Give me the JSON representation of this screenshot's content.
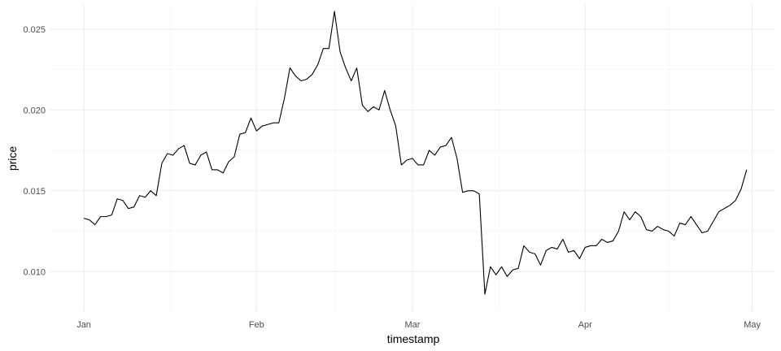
{
  "chart_data": {
    "type": "line",
    "xlabel": "timestamp",
    "ylabel": "price",
    "x_tick_labels": [
      "Jan",
      "Feb",
      "Mar",
      "Apr",
      "May"
    ],
    "x_ticks": [
      "2022-01-01",
      "2022-02-01",
      "2022-03-01",
      "2022-04-01",
      "2022-05-01"
    ],
    "y_tick_labels": [
      "0.010",
      "0.015",
      "0.020",
      "0.025"
    ],
    "y_ticks": [
      0.01,
      0.015,
      0.02,
      0.025
    ],
    "xlim": [
      "2021-12-26",
      "2022-05-05"
    ],
    "ylim": [
      0.0075,
      0.0265
    ],
    "grid": true,
    "legend": "none",
    "series": [
      {
        "color": "#000000",
        "x": [
          "2022-01-01",
          "2022-01-02",
          "2022-01-03",
          "2022-01-04",
          "2022-01-05",
          "2022-01-06",
          "2022-01-07",
          "2022-01-08",
          "2022-01-09",
          "2022-01-10",
          "2022-01-11",
          "2022-01-12",
          "2022-01-13",
          "2022-01-14",
          "2022-01-15",
          "2022-01-16",
          "2022-01-17",
          "2022-01-18",
          "2022-01-19",
          "2022-01-20",
          "2022-01-21",
          "2022-01-22",
          "2022-01-23",
          "2022-01-24",
          "2022-01-25",
          "2022-01-26",
          "2022-01-27",
          "2022-01-28",
          "2022-01-29",
          "2022-01-30",
          "2022-01-31",
          "2022-02-01",
          "2022-02-02",
          "2022-02-03",
          "2022-02-04",
          "2022-02-05",
          "2022-02-06",
          "2022-02-07",
          "2022-02-08",
          "2022-02-09",
          "2022-02-10",
          "2022-02-11",
          "2022-02-12",
          "2022-02-13",
          "2022-02-14",
          "2022-02-15",
          "2022-02-16",
          "2022-02-17",
          "2022-02-18",
          "2022-02-19",
          "2022-02-20",
          "2022-02-21",
          "2022-02-22",
          "2022-02-23",
          "2022-02-24",
          "2022-02-25",
          "2022-02-26",
          "2022-02-27",
          "2022-02-28",
          "2022-03-01",
          "2022-03-02",
          "2022-03-03",
          "2022-03-04",
          "2022-03-05",
          "2022-03-06",
          "2022-03-07",
          "2022-03-08",
          "2022-03-09",
          "2022-03-10",
          "2022-03-11",
          "2022-03-12",
          "2022-03-13",
          "2022-03-14",
          "2022-03-15",
          "2022-03-16",
          "2022-03-17",
          "2022-03-18",
          "2022-03-19",
          "2022-03-20",
          "2022-03-21",
          "2022-03-22",
          "2022-03-23",
          "2022-03-24",
          "2022-03-25",
          "2022-03-26",
          "2022-03-27",
          "2022-03-28",
          "2022-03-29",
          "2022-03-30",
          "2022-03-31",
          "2022-04-01",
          "2022-04-02",
          "2022-04-03",
          "2022-04-04",
          "2022-04-05",
          "2022-04-06",
          "2022-04-07",
          "2022-04-08",
          "2022-04-09",
          "2022-04-10",
          "2022-04-11",
          "2022-04-12",
          "2022-04-13",
          "2022-04-14",
          "2022-04-15",
          "2022-04-16",
          "2022-04-17",
          "2022-04-18",
          "2022-04-19",
          "2022-04-20",
          "2022-04-21",
          "2022-04-22",
          "2022-04-23",
          "2022-04-24",
          "2022-04-25",
          "2022-04-26",
          "2022-04-27",
          "2022-04-28",
          "2022-04-29",
          "2022-04-30"
        ],
        "y": [
          0.0133,
          0.0132,
          0.0129,
          0.0134,
          0.0134,
          0.0135,
          0.0145,
          0.0144,
          0.0139,
          0.014,
          0.0147,
          0.0146,
          0.015,
          0.0147,
          0.0167,
          0.0173,
          0.0172,
          0.0176,
          0.0178,
          0.0167,
          0.0166,
          0.0172,
          0.0174,
          0.0163,
          0.0163,
          0.0161,
          0.0168,
          0.0171,
          0.0185,
          0.0186,
          0.0195,
          0.0187,
          0.019,
          0.0191,
          0.0192,
          0.0192,
          0.0207,
          0.0226,
          0.0221,
          0.0218,
          0.0219,
          0.0222,
          0.0228,
          0.0238,
          0.0238,
          0.0261,
          0.0236,
          0.0226,
          0.0218,
          0.0226,
          0.0203,
          0.0199,
          0.0202,
          0.02,
          0.0212,
          0.02,
          0.019,
          0.0166,
          0.0169,
          0.017,
          0.0166,
          0.0166,
          0.0175,
          0.0172,
          0.0177,
          0.0178,
          0.0183,
          0.017,
          0.0149,
          0.015,
          0.015,
          0.0148,
          0.0086,
          0.0103,
          0.0098,
          0.0103,
          0.0097,
          0.0101,
          0.0102,
          0.0116,
          0.0112,
          0.0111,
          0.0104,
          0.0113,
          0.0115,
          0.0114,
          0.012,
          0.0112,
          0.0113,
          0.0108,
          0.0115,
          0.0116,
          0.0116,
          0.012,
          0.0118,
          0.0119,
          0.0125,
          0.0137,
          0.0132,
          0.0137,
          0.0134,
          0.0126,
          0.0125,
          0.0128,
          0.0126,
          0.0125,
          0.0122,
          0.013,
          0.0129,
          0.0134,
          0.0129,
          0.0124,
          0.0125,
          0.0131,
          0.0137,
          0.0139,
          0.0141,
          0.0144,
          0.0151,
          0.0163
        ]
      }
    ]
  }
}
